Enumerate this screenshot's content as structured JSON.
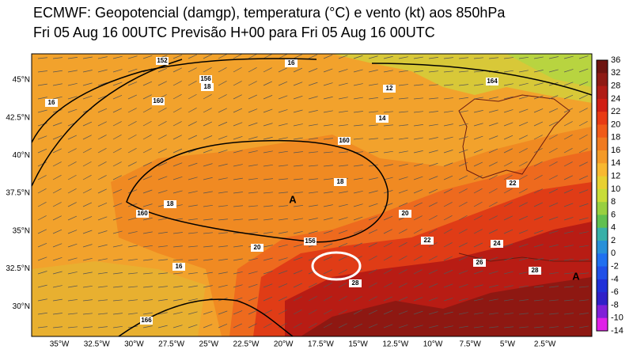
{
  "header": {
    "title": "ECMWF: Geopotencial (damgp), temperatura (°C) e vento (kt) aos 850hPa",
    "subtitle": "Fri 05 Aug 16 00UTC Previsão H+00 para Fri 05 Aug 16 00UTC"
  },
  "map": {
    "lon_labels": [
      "35°W",
      "32.5°W",
      "30°W",
      "27.5°W",
      "25°W",
      "22.5°W",
      "20°W",
      "17.5°W",
      "15°W",
      "12.5°W",
      "10°W",
      "7.5°W",
      "5°W",
      "2.5°W"
    ],
    "lat_labels": [
      "45°N",
      "42.5°N",
      "40°N",
      "37.5°N",
      "35°N",
      "32.5°N",
      "30°N"
    ],
    "contour_labels": [
      "152",
      "156",
      "160",
      "160",
      "160",
      "156",
      "164",
      "166",
      "16",
      "16",
      "18",
      "18",
      "18",
      "14",
      "12",
      "20",
      "20",
      "22",
      "22",
      "24",
      "26",
      "28",
      "28",
      "16",
      "A",
      "A"
    ]
  },
  "colorbar": {
    "labels": [
      "36",
      "32",
      "28",
      "24",
      "22",
      "20",
      "18",
      "16",
      "14",
      "12",
      "10",
      "8",
      "6",
      "4",
      "2",
      "0",
      "-2",
      "-4",
      "-6",
      "-8",
      "-10",
      "-14"
    ],
    "colors": [
      "#6e1410",
      "#8e1a14",
      "#b01c16",
      "#d01e14",
      "#e83a14",
      "#f05a18",
      "#f07a20",
      "#f49a28",
      "#f8b830",
      "#e8d030",
      "#c8dc38",
      "#98d040",
      "#60c050",
      "#38b0a8",
      "#2890d8",
      "#2070f0",
      "#2050e8",
      "#2030d8",
      "#3020c8",
      "#8020d8",
      "#e020e8"
    ]
  }
}
